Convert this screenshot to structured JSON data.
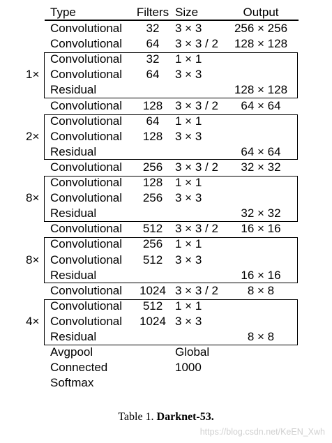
{
  "table": {
    "headers": {
      "type": "Type",
      "filters": "Filters",
      "size": "Size",
      "output": "Output"
    },
    "rows": [
      {
        "type": "Convolutional",
        "filters": "32",
        "size": "3 × 3",
        "output": "256 × 256"
      },
      {
        "type": "Convolutional",
        "filters": "64",
        "size": "3 × 3 / 2",
        "output": "128 × 128"
      },
      {
        "type": "Convolutional",
        "filters": "32",
        "size": "1 × 1",
        "output": ""
      },
      {
        "type": "Convolutional",
        "filters": "64",
        "size": "3 × 3",
        "output": ""
      },
      {
        "type": "Residual",
        "filters": "",
        "size": "",
        "output": "128 × 128"
      },
      {
        "type": "Convolutional",
        "filters": "128",
        "size": "3 × 3 / 2",
        "output": "64 × 64"
      },
      {
        "type": "Convolutional",
        "filters": "64",
        "size": "1 × 1",
        "output": ""
      },
      {
        "type": "Convolutional",
        "filters": "128",
        "size": "3 × 3",
        "output": ""
      },
      {
        "type": "Residual",
        "filters": "",
        "size": "",
        "output": "64 × 64"
      },
      {
        "type": "Convolutional",
        "filters": "256",
        "size": "3 × 3 / 2",
        "output": "32 × 32"
      },
      {
        "type": "Convolutional",
        "filters": "128",
        "size": "1 × 1",
        "output": ""
      },
      {
        "type": "Convolutional",
        "filters": "256",
        "size": "3 × 3",
        "output": ""
      },
      {
        "type": "Residual",
        "filters": "",
        "size": "",
        "output": "32 × 32"
      },
      {
        "type": "Convolutional",
        "filters": "512",
        "size": "3 × 3 / 2",
        "output": "16 × 16"
      },
      {
        "type": "Convolutional",
        "filters": "256",
        "size": "1 × 1",
        "output": ""
      },
      {
        "type": "Convolutional",
        "filters": "512",
        "size": "3 × 3",
        "output": ""
      },
      {
        "type": "Residual",
        "filters": "",
        "size": "",
        "output": "16 × 16"
      },
      {
        "type": "Convolutional",
        "filters": "1024",
        "size": "3 × 3 / 2",
        "output": "8 × 8"
      },
      {
        "type": "Convolutional",
        "filters": "512",
        "size": "1 × 1",
        "output": ""
      },
      {
        "type": "Convolutional",
        "filters": "1024",
        "size": "3 × 3",
        "output": ""
      },
      {
        "type": "Residual",
        "filters": "",
        "size": "",
        "output": "8 × 8"
      },
      {
        "type": "Avgpool",
        "filters": "",
        "size": "Global",
        "output": ""
      },
      {
        "type": "Connected",
        "filters": "",
        "size": "1000",
        "output": ""
      },
      {
        "type": "Softmax",
        "filters": "",
        "size": "",
        "output": ""
      }
    ],
    "blocks": [
      {
        "multiplier": "1×",
        "first_row": 2
      },
      {
        "multiplier": "2×",
        "first_row": 6
      },
      {
        "multiplier": "8×",
        "first_row": 10
      },
      {
        "multiplier": "8×",
        "first_row": 14
      },
      {
        "multiplier": "4×",
        "first_row": 18
      }
    ]
  },
  "caption": {
    "prefix": "Table 1.",
    "title": "Darknet-53."
  },
  "watermark": "https://blog.csdn.net/KeEN_Xwh"
}
